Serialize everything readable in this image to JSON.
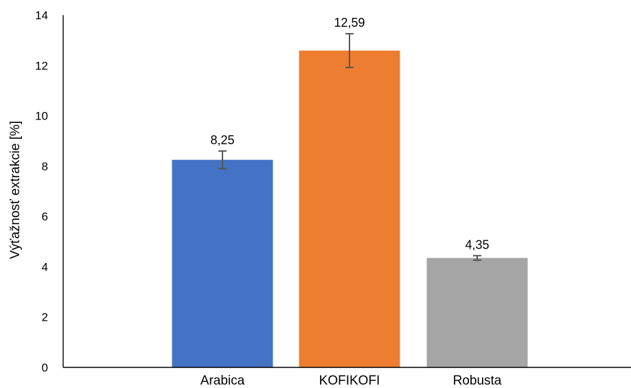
{
  "chart_data": {
    "type": "bar",
    "categories": [
      "Arabica",
      "KOFIKOFI",
      "Robusta"
    ],
    "values": [
      8.25,
      12.59,
      4.35
    ],
    "data_labels": [
      "8,25",
      "12,59",
      "4,35"
    ],
    "error": [
      0.35,
      0.67,
      0.09
    ],
    "colors": [
      "#4472C4",
      "#ED7D31",
      "#A5A5A5"
    ],
    "ylabel": "Výťažnosť extrakcie  [%]",
    "xlabel": "",
    "title": "",
    "ylim": [
      0,
      14
    ],
    "yticks": [
      0,
      2,
      4,
      6,
      8,
      10,
      12,
      14
    ],
    "grid": false,
    "legend": "none"
  }
}
